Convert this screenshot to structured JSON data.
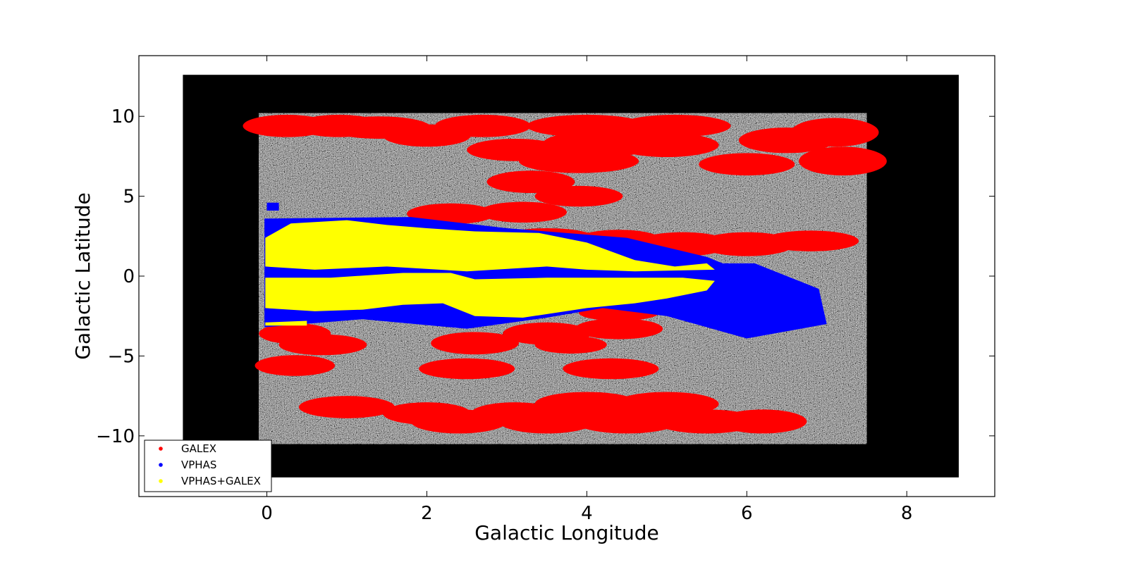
{
  "chart_data": {
    "type": "scatter",
    "title": "",
    "xlabel": "Galactic Longitude",
    "ylabel": "Galactic Latitude",
    "xlim": [
      -1.6,
      9.1
    ],
    "ylim": [
      -13.8,
      13.8
    ],
    "xticks": [
      0,
      2,
      4,
      6,
      8
    ],
    "yticks": [
      -10,
      -5,
      0,
      5,
      10
    ],
    "xtick_labels": [
      "0",
      "2",
      "4",
      "6",
      "8"
    ],
    "ytick_labels": [
      "−10",
      "−5",
      "0",
      "5",
      "10"
    ],
    "grid": false,
    "legend_position": "bottom-left",
    "background_image": {
      "extent_x": [
        -1.05,
        8.65
      ],
      "extent_y": [
        -12.6,
        12.6
      ],
      "survey_extent_x": [
        -0.1,
        7.5
      ],
      "survey_extent_y": [
        -10.5,
        10.2
      ]
    },
    "series": [
      {
        "name": "GALEX",
        "color": "#ff0000",
        "fields": [
          {
            "l": 0.25,
            "b": 9.4,
            "rl": 0.55,
            "rb": 0.7
          },
          {
            "l": 0.9,
            "b": 9.4,
            "rl": 0.55,
            "rb": 0.7
          },
          {
            "l": 1.4,
            "b": 9.3,
            "rl": 0.65,
            "rb": 0.7
          },
          {
            "l": 2.0,
            "b": 8.8,
            "rl": 0.55,
            "rb": 0.7
          },
          {
            "l": 2.7,
            "b": 9.4,
            "rl": 0.6,
            "rb": 0.7
          },
          {
            "l": 3.1,
            "b": 7.9,
            "rl": 0.6,
            "rb": 0.7
          },
          {
            "l": 3.9,
            "b": 7.2,
            "rl": 0.75,
            "rb": 0.75
          },
          {
            "l": 4.2,
            "b": 8.3,
            "rl": 0.75,
            "rb": 0.8
          },
          {
            "l": 4.0,
            "b": 9.4,
            "rl": 0.75,
            "rb": 0.7
          },
          {
            "l": 5.1,
            "b": 9.4,
            "rl": 0.7,
            "rb": 0.7
          },
          {
            "l": 5.0,
            "b": 8.2,
            "rl": 0.65,
            "rb": 0.75
          },
          {
            "l": 6.0,
            "b": 7.0,
            "rl": 0.6,
            "rb": 0.7
          },
          {
            "l": 6.5,
            "b": 8.5,
            "rl": 0.6,
            "rb": 0.8
          },
          {
            "l": 7.1,
            "b": 9.0,
            "rl": 0.55,
            "rb": 0.9
          },
          {
            "l": 7.2,
            "b": 7.2,
            "rl": 0.55,
            "rb": 0.9
          },
          {
            "l": 3.3,
            "b": 5.9,
            "rl": 0.55,
            "rb": 0.7
          },
          {
            "l": 3.9,
            "b": 5.0,
            "rl": 0.55,
            "rb": 0.65
          },
          {
            "l": 2.3,
            "b": 3.9,
            "rl": 0.55,
            "rb": 0.65
          },
          {
            "l": 3.2,
            "b": 4.0,
            "rl": 0.55,
            "rb": 0.65
          },
          {
            "l": 4.4,
            "b": 2.2,
            "rl": 0.55,
            "rb": 0.7
          },
          {
            "l": 5.2,
            "b": 2.0,
            "rl": 0.6,
            "rb": 0.75
          },
          {
            "l": 6.0,
            "b": 2.0,
            "rl": 0.6,
            "rb": 0.75
          },
          {
            "l": 6.8,
            "b": 2.2,
            "rl": 0.6,
            "rb": 0.65
          },
          {
            "l": 3.5,
            "b": 2.4,
            "rl": 0.6,
            "rb": 0.6
          },
          {
            "l": 0.35,
            "b": -3.6,
            "rl": 0.45,
            "rb": 0.65
          },
          {
            "l": 0.7,
            "b": -4.3,
            "rl": 0.55,
            "rb": 0.65
          },
          {
            "l": 0.35,
            "b": -5.6,
            "rl": 0.5,
            "rb": 0.65
          },
          {
            "l": 2.6,
            "b": -4.2,
            "rl": 0.55,
            "rb": 0.7
          },
          {
            "l": 3.5,
            "b": -3.6,
            "rl": 0.55,
            "rb": 0.7
          },
          {
            "l": 3.8,
            "b": -4.3,
            "rl": 0.45,
            "rb": 0.55
          },
          {
            "l": 4.4,
            "b": -3.3,
            "rl": 0.55,
            "rb": 0.65
          },
          {
            "l": 4.4,
            "b": -2.3,
            "rl": 0.5,
            "rb": 0.5
          },
          {
            "l": 2.5,
            "b": -5.8,
            "rl": 0.6,
            "rb": 0.65
          },
          {
            "l": 4.3,
            "b": -5.8,
            "rl": 0.6,
            "rb": 0.65
          },
          {
            "l": 1.0,
            "b": -8.2,
            "rl": 0.6,
            "rb": 0.7
          },
          {
            "l": 2.0,
            "b": -8.6,
            "rl": 0.55,
            "rb": 0.7
          },
          {
            "l": 2.4,
            "b": -9.1,
            "rl": 0.6,
            "rb": 0.75
          },
          {
            "l": 3.1,
            "b": -8.6,
            "rl": 0.55,
            "rb": 0.7
          },
          {
            "l": 3.5,
            "b": -9.1,
            "rl": 0.6,
            "rb": 0.75
          },
          {
            "l": 4.0,
            "b": -8.0,
            "rl": 0.65,
            "rb": 0.75
          },
          {
            "l": 4.5,
            "b": -9.1,
            "rl": 0.65,
            "rb": 0.75
          },
          {
            "l": 5.0,
            "b": -8.0,
            "rl": 0.65,
            "rb": 0.75
          },
          {
            "l": 5.5,
            "b": -9.1,
            "rl": 0.65,
            "rb": 0.75
          },
          {
            "l": 6.2,
            "b": -9.1,
            "rl": 0.55,
            "rb": 0.75
          }
        ]
      },
      {
        "name": "VPHAS",
        "color": "#0000ff",
        "regions": [
          [
            [
              -0.03,
              3.6
            ],
            [
              1.8,
              3.7
            ],
            [
              3.0,
              3.0
            ],
            [
              4.5,
              2.4
            ],
            [
              5.5,
              1.2
            ],
            [
              5.7,
              0.8
            ],
            [
              6.1,
              0.8
            ],
            [
              6.9,
              -0.8
            ],
            [
              7.0,
              -3.0
            ],
            [
              6.0,
              -3.9
            ],
            [
              5.0,
              -2.5
            ],
            [
              4.2,
              -2.0
            ],
            [
              3.5,
              -2.6
            ],
            [
              2.5,
              -3.3
            ],
            [
              1.2,
              -2.7
            ],
            [
              -0.03,
              -3.2
            ]
          ],
          [
            [
              0.0,
              4.6
            ],
            [
              0.15,
              4.6
            ],
            [
              0.15,
              4.1
            ],
            [
              0.0,
              4.1
            ]
          ]
        ]
      },
      {
        "name": "VPHAS+GALEX",
        "color": "#ffff00",
        "regions": [
          [
            [
              -0.02,
              2.4
            ],
            [
              0.3,
              3.3
            ],
            [
              1.0,
              3.5
            ],
            [
              1.5,
              3.2
            ],
            [
              2.0,
              3.0
            ],
            [
              2.6,
              2.8
            ],
            [
              3.4,
              2.7
            ],
            [
              4.0,
              2.1
            ],
            [
              4.6,
              1.0
            ],
            [
              5.1,
              0.6
            ],
            [
              5.5,
              0.8
            ],
            [
              5.6,
              0.4
            ],
            [
              4.6,
              0.3
            ],
            [
              4.0,
              0.4
            ],
            [
              3.5,
              0.6
            ],
            [
              2.5,
              0.3
            ],
            [
              1.5,
              0.6
            ],
            [
              0.6,
              0.4
            ],
            [
              -0.02,
              0.6
            ]
          ],
          [
            [
              -0.02,
              -0.1
            ],
            [
              0.8,
              -0.1
            ],
            [
              1.7,
              0.2
            ],
            [
              2.3,
              0.2
            ],
            [
              2.6,
              -0.2
            ],
            [
              3.5,
              -0.1
            ],
            [
              4.2,
              -0.1
            ],
            [
              5.2,
              -0.1
            ],
            [
              5.6,
              -0.3
            ],
            [
              5.5,
              -0.9
            ],
            [
              5.0,
              -1.4
            ],
            [
              4.6,
              -1.7
            ],
            [
              4.0,
              -2.0
            ],
            [
              3.2,
              -2.6
            ],
            [
              2.6,
              -2.5
            ],
            [
              2.2,
              -1.7
            ],
            [
              1.7,
              -1.8
            ],
            [
              1.2,
              -2.1
            ],
            [
              0.6,
              -2.2
            ],
            [
              -0.02,
              -2.0
            ]
          ],
          [
            [
              -0.02,
              -2.9
            ],
            [
              0.5,
              -2.8
            ],
            [
              0.5,
              -3.1
            ],
            [
              -0.02,
              -3.1
            ]
          ]
        ]
      }
    ]
  }
}
